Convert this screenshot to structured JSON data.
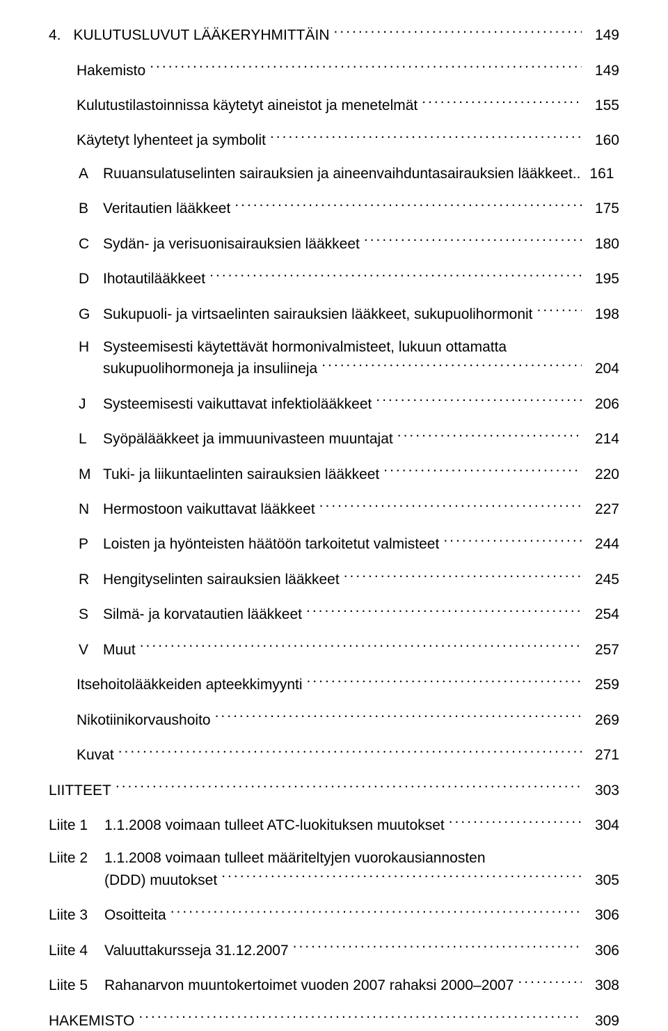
{
  "section": {
    "num": "4.",
    "title": "KULUTUSLUVUT LÄÄKERYHMITTÄIN",
    "page": "149"
  },
  "sub": [
    {
      "label": "Hakemisto",
      "page": "149"
    },
    {
      "label": "Kulutustilastoinnissa käytetyt aineistot ja menetelmät",
      "page": "155"
    },
    {
      "label": "Käytetyt lyhenteet ja symbolit",
      "page": "160"
    }
  ],
  "codes": [
    {
      "code": "A",
      "label": "Ruuansulatuselinten sairauksien ja aineenvaihduntasairauksien lääkkeet",
      "page": "161",
      "multiline": true,
      "line1": "Ruuansulatuselinten sairauksien ja aineenvaihduntasairauksien lääkkeet.."
    },
    {
      "code": "B",
      "label": "Veritautien lääkkeet",
      "page": "175"
    },
    {
      "code": "C",
      "label": "Sydän- ja verisuonisairauksien lääkkeet",
      "page": "180"
    },
    {
      "code": "D",
      "label": "Ihotautilääkkeet",
      "page": "195"
    },
    {
      "code": "G",
      "label": "Sukupuoli- ja virtsaelinten sairauksien lääkkeet, sukupuolihormonit",
      "page": "198"
    },
    {
      "code": "H",
      "line1": "Systeemisesti käytettävät hormonivalmisteet, lukuun ottamatta",
      "line2": "sukupuolihormoneja ja insuliineja",
      "page": "204"
    },
    {
      "code": "J",
      "label": "Systeemisesti vaikuttavat infektiolääkkeet",
      "page": "206"
    },
    {
      "code": "L",
      "label": "Syöpälääkkeet ja immuunivasteen muuntajat",
      "page": "214"
    },
    {
      "code": "M",
      "label": "Tuki- ja liikuntaelinten sairauksien lääkkeet",
      "page": "220"
    },
    {
      "code": "N",
      "label": "Hermostoon vaikuttavat lääkkeet",
      "page": "227"
    },
    {
      "code": "P",
      "label": "Loisten ja hyönteisten häätöön tarkoitetut valmisteet",
      "page": "244"
    },
    {
      "code": "R",
      "label": "Hengityselinten sairauksien lääkkeet",
      "page": "245"
    },
    {
      "code": "S",
      "label": "Silmä- ja korvatautien lääkkeet",
      "page": "254"
    },
    {
      "code": "V",
      "label": "Muut",
      "page": "257"
    }
  ],
  "trailing": [
    {
      "label": "Itsehoitolääkkeiden apteekkimyynti",
      "page": "259"
    },
    {
      "label": "Nikotiinikorvaushoito",
      "page": "269"
    },
    {
      "label": "Kuvat",
      "page": "271"
    }
  ],
  "liitteet": {
    "label": "LIITTEET",
    "page": "303"
  },
  "liite": [
    {
      "prefix": "Liite 1",
      "label": "1.1.2008 voimaan tulleet ATC-luokituksen muutokset",
      "page": "304"
    },
    {
      "prefix": "Liite 2",
      "line1": "1.1.2008 voimaan tulleet määriteltyjen vuorokausiannosten",
      "line2": "(DDD) muutokset",
      "page": "305"
    },
    {
      "prefix": "Liite 3",
      "label": "Osoitteita",
      "page": "306"
    },
    {
      "prefix": "Liite 4",
      "label": "Valuuttakursseja 31.12.2007",
      "page": "306"
    },
    {
      "prefix": "Liite 5",
      "label": "Rahanarvon muuntokertoimet vuoden 2007 rahaksi 2000–2007",
      "page": "308"
    }
  ],
  "hakemisto": {
    "label": "HAKEMISTO",
    "page": "309"
  }
}
